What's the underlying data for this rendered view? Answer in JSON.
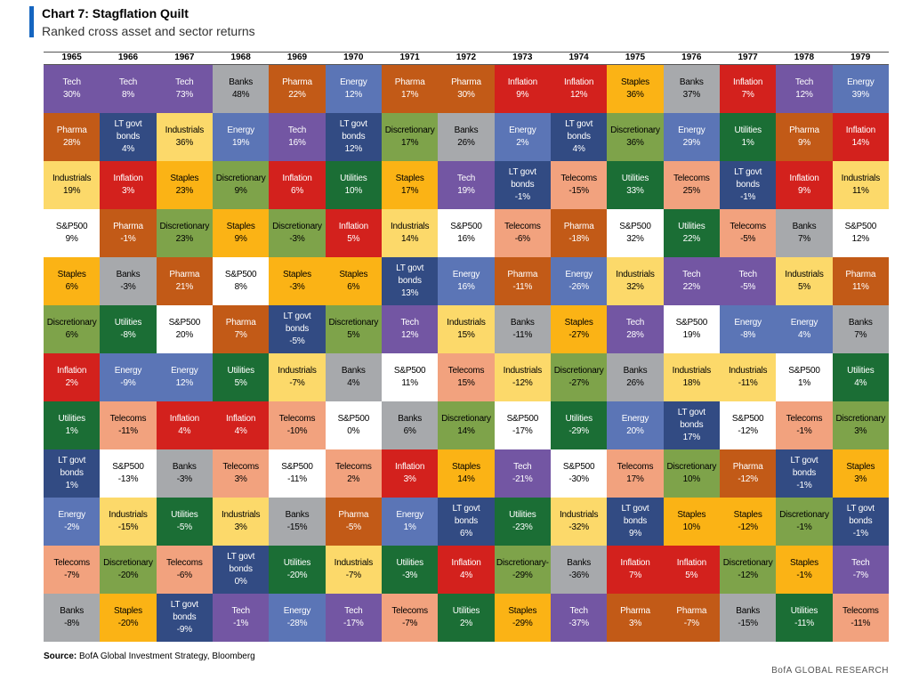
{
  "title": "Chart 7: Stagflation Quilt",
  "subtitle": "Ranked cross asset and sector returns",
  "source_label": "Source:",
  "source_text": "BofA Global Investment Strategy, Bloomberg",
  "brand": "BofA GLOBAL RESEARCH",
  "colors": {
    "Tech": "#7356a3",
    "Pharma": "#c25a17",
    "Banks": "#a7a9ac",
    "Energy": "#5b75b6",
    "Inflation": "#d3211d",
    "Staples": "#fbb315",
    "Industrials": "#fcd96a",
    "LT govt bonds": "#324b83",
    "Discretionary": "#7ea34a",
    "Utilities": "#1b6e35",
    "Telecoms": "#f2a27e",
    "S&P500": "#ffffff"
  },
  "text_colors": {
    "Tech": "#ffffff",
    "Pharma": "#ffffff",
    "Banks": "#000000",
    "Energy": "#ffffff",
    "Inflation": "#ffffff",
    "Staples": "#000000",
    "Industrials": "#000000",
    "LT govt bonds": "#ffffff",
    "Discretionary": "#000000",
    "Utilities": "#ffffff",
    "Telecoms": "#000000",
    "S&P500": "#000000"
  },
  "chart_data": {
    "type": "table",
    "title": "Chart 7: Stagflation Quilt",
    "subtitle": "Ranked cross asset and sector returns",
    "years": [
      "1965",
      "1966",
      "1967",
      "1968",
      "1969",
      "1970",
      "1971",
      "1972",
      "1973",
      "1974",
      "1975",
      "1976",
      "1977",
      "1978",
      "1979"
    ],
    "columns": [
      [
        [
          "Tech",
          "30%"
        ],
        [
          "Pharma",
          "28%"
        ],
        [
          "Industrials",
          "19%"
        ],
        [
          "S&P500",
          "9%"
        ],
        [
          "Staples",
          "6%"
        ],
        [
          "Discretionary",
          "6%"
        ],
        [
          "Inflation",
          "2%"
        ],
        [
          "Utilities",
          "1%"
        ],
        [
          "LT govt bonds",
          "1%"
        ],
        [
          "Energy",
          "-2%"
        ],
        [
          "Telecoms",
          "-7%"
        ],
        [
          "Banks",
          "-8%"
        ]
      ],
      [
        [
          "Tech",
          "8%"
        ],
        [
          "LT govt bonds",
          "4%"
        ],
        [
          "Inflation",
          "3%"
        ],
        [
          "Pharma",
          "-1%"
        ],
        [
          "Banks",
          "-3%"
        ],
        [
          "Utilities",
          "-8%"
        ],
        [
          "Energy",
          "-9%"
        ],
        [
          "Telecoms",
          "-11%"
        ],
        [
          "S&P500",
          "-13%"
        ],
        [
          "Industrials",
          "-15%"
        ],
        [
          "Discretionary",
          "-20%"
        ],
        [
          "Staples",
          "-20%"
        ]
      ],
      [
        [
          "Tech",
          "73%"
        ],
        [
          "Industrials",
          "36%"
        ],
        [
          "Staples",
          "23%"
        ],
        [
          "Discretionary",
          "23%"
        ],
        [
          "Pharma",
          "21%"
        ],
        [
          "S&P500",
          "20%"
        ],
        [
          "Energy",
          "12%"
        ],
        [
          "Inflation",
          "4%"
        ],
        [
          "Banks",
          "-3%"
        ],
        [
          "Utilities",
          "-5%"
        ],
        [
          "Telecoms",
          "-6%"
        ],
        [
          "LT govt bonds",
          "-9%"
        ]
      ],
      [
        [
          "Banks",
          "48%"
        ],
        [
          "Energy",
          "19%"
        ],
        [
          "Discretionary",
          "9%"
        ],
        [
          "Staples",
          "9%"
        ],
        [
          "S&P500",
          "8%"
        ],
        [
          "Pharma",
          "7%"
        ],
        [
          "Utilities",
          "5%"
        ],
        [
          "Inflation",
          "4%"
        ],
        [
          "Telecoms",
          "3%"
        ],
        [
          "Industrials",
          "3%"
        ],
        [
          "LT govt bonds",
          "0%"
        ],
        [
          "Tech",
          "-1%"
        ]
      ],
      [
        [
          "Pharma",
          "22%"
        ],
        [
          "Tech",
          "16%"
        ],
        [
          "Inflation",
          "6%"
        ],
        [
          "Discretionary",
          "-3%"
        ],
        [
          "Staples",
          "-3%"
        ],
        [
          "LT govt bonds",
          "-5%"
        ],
        [
          "Industrials",
          "-7%"
        ],
        [
          "Telecoms",
          "-10%"
        ],
        [
          "S&P500",
          "-11%"
        ],
        [
          "Banks",
          "-15%"
        ],
        [
          "Utilities",
          "-20%"
        ],
        [
          "Energy",
          "-28%"
        ]
      ],
      [
        [
          "Energy",
          "12%"
        ],
        [
          "LT govt bonds",
          "12%"
        ],
        [
          "Utilities",
          "10%"
        ],
        [
          "Inflation",
          "5%"
        ],
        [
          "Staples",
          "6%"
        ],
        [
          "Discretionary",
          "5%"
        ],
        [
          "Banks",
          "4%"
        ],
        [
          "S&P500",
          "0%"
        ],
        [
          "Telecoms",
          "2%"
        ],
        [
          "Pharma",
          "-5%"
        ],
        [
          "Industrials",
          "-7%"
        ],
        [
          "Tech",
          "-17%"
        ]
      ],
      [
        [
          "Pharma",
          "17%"
        ],
        [
          "Discretionary",
          "17%"
        ],
        [
          "Staples",
          "17%"
        ],
        [
          "Industrials",
          "14%"
        ],
        [
          "LT govt bonds",
          "13%"
        ],
        [
          "Tech",
          "12%"
        ],
        [
          "S&P500",
          "11%"
        ],
        [
          "Banks",
          "6%"
        ],
        [
          "Inflation",
          "3%"
        ],
        [
          "Energy",
          "1%"
        ],
        [
          "Utilities",
          "-3%"
        ],
        [
          "Telecoms",
          "-7%"
        ]
      ],
      [
        [
          "Pharma",
          "30%"
        ],
        [
          "Banks",
          "26%"
        ],
        [
          "Tech",
          "19%"
        ],
        [
          "S&P500",
          "16%"
        ],
        [
          "Energy",
          "16%"
        ],
        [
          "Industrials",
          "15%"
        ],
        [
          "Telecoms",
          "15%"
        ],
        [
          "Discretionary",
          "14%"
        ],
        [
          "Staples",
          "14%"
        ],
        [
          "LT govt bonds",
          "6%"
        ],
        [
          "Inflation",
          "4%"
        ],
        [
          "Utilities",
          "2%"
        ]
      ],
      [
        [
          "Inflation",
          "9%"
        ],
        [
          "Energy",
          "2%"
        ],
        [
          "LT govt bonds",
          "-1%"
        ],
        [
          "Telecoms",
          "-6%"
        ],
        [
          "Pharma",
          "-11%"
        ],
        [
          "Banks",
          "-11%"
        ],
        [
          "Industrials",
          "-12%"
        ],
        [
          "S&P500",
          "-17%"
        ],
        [
          "Tech",
          "-21%"
        ],
        [
          "Utilities",
          "-23%"
        ],
        [
          "Discretionary-",
          "-29%"
        ],
        [
          "Staples",
          "-29%"
        ]
      ],
      [
        [
          "Inflation",
          "12%"
        ],
        [
          "LT govt bonds",
          "4%"
        ],
        [
          "Telecoms",
          "-15%"
        ],
        [
          "Pharma",
          "-18%"
        ],
        [
          "Energy",
          "-26%"
        ],
        [
          "Staples",
          "-27%"
        ],
        [
          "Discretionary",
          "-27%"
        ],
        [
          "Utilities",
          "-29%"
        ],
        [
          "S&P500",
          "-30%"
        ],
        [
          "Industrials",
          "-32%"
        ],
        [
          "Banks",
          "-36%"
        ],
        [
          "Tech",
          "-37%"
        ]
      ],
      [
        [
          "Staples",
          "36%"
        ],
        [
          "Discretionary",
          "36%"
        ],
        [
          "Utilities",
          "33%"
        ],
        [
          "S&P500",
          "32%"
        ],
        [
          "Industrials",
          "32%"
        ],
        [
          "Tech",
          "28%"
        ],
        [
          "Banks",
          "26%"
        ],
        [
          "Energy",
          "20%"
        ],
        [
          "Telecoms",
          "17%"
        ],
        [
          "LT govt bonds",
          "9%"
        ],
        [
          "Inflation",
          "7%"
        ],
        [
          "Pharma",
          "3%"
        ]
      ],
      [
        [
          "Banks",
          "37%"
        ],
        [
          "Energy",
          "29%"
        ],
        [
          "Telecoms",
          "25%"
        ],
        [
          "Utilities",
          "22%"
        ],
        [
          "Tech",
          "22%"
        ],
        [
          "S&P500",
          "19%"
        ],
        [
          "Industrials",
          "18%"
        ],
        [
          "LT govt bonds",
          "17%"
        ],
        [
          "Discretionary",
          "10%"
        ],
        [
          "Staples",
          "10%"
        ],
        [
          "Inflation",
          "5%"
        ],
        [
          "Pharma",
          "-7%"
        ]
      ],
      [
        [
          "Inflation",
          "7%"
        ],
        [
          "Utilities",
          "1%"
        ],
        [
          "LT govt bonds",
          "-1%"
        ],
        [
          "Telecoms",
          "-5%"
        ],
        [
          "Tech",
          "-5%"
        ],
        [
          "Energy",
          "-8%"
        ],
        [
          "Industrials",
          "-11%"
        ],
        [
          "S&P500",
          "-12%"
        ],
        [
          "Pharma",
          "-12%"
        ],
        [
          "Staples",
          "-12%"
        ],
        [
          "Discretionary",
          "-12%"
        ],
        [
          "Banks",
          "-15%"
        ]
      ],
      [
        [
          "Tech",
          "12%"
        ],
        [
          "Pharma",
          "9%"
        ],
        [
          "Inflation",
          "9%"
        ],
        [
          "Banks",
          "7%"
        ],
        [
          "Industrials",
          "5%"
        ],
        [
          "Energy",
          "4%"
        ],
        [
          "S&P500",
          "1%"
        ],
        [
          "Telecoms",
          "-1%"
        ],
        [
          "LT govt bonds",
          "-1%"
        ],
        [
          "Discretionary",
          "-1%"
        ],
        [
          "Staples",
          "-1%"
        ],
        [
          "Utilities",
          "-11%"
        ]
      ],
      [
        [
          "Energy",
          "39%"
        ],
        [
          "Inflation",
          "14%"
        ],
        [
          "Industrials",
          "11%"
        ],
        [
          "S&P500",
          "12%"
        ],
        [
          "Pharma",
          "11%"
        ],
        [
          "Banks",
          "7%"
        ],
        [
          "Utilities",
          "4%"
        ],
        [
          "Discretionary",
          "3%"
        ],
        [
          "Staples",
          "3%"
        ],
        [
          "LT govt bonds",
          "-1%"
        ],
        [
          "Tech",
          "-7%"
        ],
        [
          "Telecoms",
          "-11%"
        ]
      ]
    ]
  }
}
